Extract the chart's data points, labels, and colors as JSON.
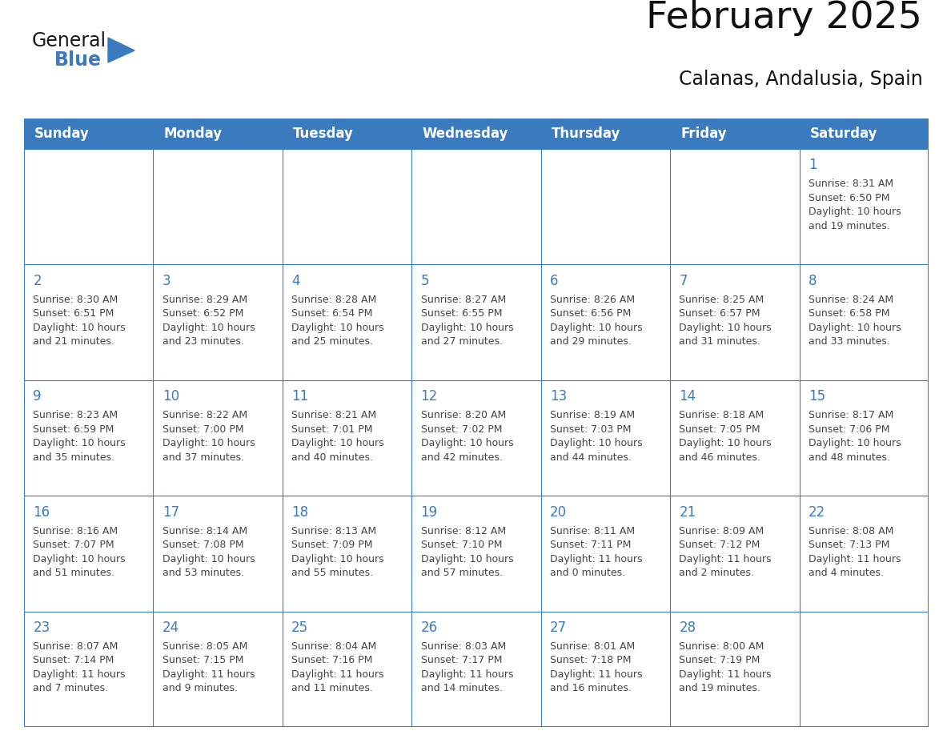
{
  "title": "February 2025",
  "subtitle": "Calanas, Andalusia, Spain",
  "header_bg": "#3a7abf",
  "header_text_color": "#ffffff",
  "grid_line_color": "#3a7abf",
  "day_number_color": "#3a7abf",
  "cell_text_color": "#444444",
  "days_of_week": [
    "Sunday",
    "Monday",
    "Tuesday",
    "Wednesday",
    "Thursday",
    "Friday",
    "Saturday"
  ],
  "weeks": [
    [
      {
        "day": null,
        "info": ""
      },
      {
        "day": null,
        "info": ""
      },
      {
        "day": null,
        "info": ""
      },
      {
        "day": null,
        "info": ""
      },
      {
        "day": null,
        "info": ""
      },
      {
        "day": null,
        "info": ""
      },
      {
        "day": 1,
        "info": "Sunrise: 8:31 AM\nSunset: 6:50 PM\nDaylight: 10 hours\nand 19 minutes."
      }
    ],
    [
      {
        "day": 2,
        "info": "Sunrise: 8:30 AM\nSunset: 6:51 PM\nDaylight: 10 hours\nand 21 minutes."
      },
      {
        "day": 3,
        "info": "Sunrise: 8:29 AM\nSunset: 6:52 PM\nDaylight: 10 hours\nand 23 minutes."
      },
      {
        "day": 4,
        "info": "Sunrise: 8:28 AM\nSunset: 6:54 PM\nDaylight: 10 hours\nand 25 minutes."
      },
      {
        "day": 5,
        "info": "Sunrise: 8:27 AM\nSunset: 6:55 PM\nDaylight: 10 hours\nand 27 minutes."
      },
      {
        "day": 6,
        "info": "Sunrise: 8:26 AM\nSunset: 6:56 PM\nDaylight: 10 hours\nand 29 minutes."
      },
      {
        "day": 7,
        "info": "Sunrise: 8:25 AM\nSunset: 6:57 PM\nDaylight: 10 hours\nand 31 minutes."
      },
      {
        "day": 8,
        "info": "Sunrise: 8:24 AM\nSunset: 6:58 PM\nDaylight: 10 hours\nand 33 minutes."
      }
    ],
    [
      {
        "day": 9,
        "info": "Sunrise: 8:23 AM\nSunset: 6:59 PM\nDaylight: 10 hours\nand 35 minutes."
      },
      {
        "day": 10,
        "info": "Sunrise: 8:22 AM\nSunset: 7:00 PM\nDaylight: 10 hours\nand 37 minutes."
      },
      {
        "day": 11,
        "info": "Sunrise: 8:21 AM\nSunset: 7:01 PM\nDaylight: 10 hours\nand 40 minutes."
      },
      {
        "day": 12,
        "info": "Sunrise: 8:20 AM\nSunset: 7:02 PM\nDaylight: 10 hours\nand 42 minutes."
      },
      {
        "day": 13,
        "info": "Sunrise: 8:19 AM\nSunset: 7:03 PM\nDaylight: 10 hours\nand 44 minutes."
      },
      {
        "day": 14,
        "info": "Sunrise: 8:18 AM\nSunset: 7:05 PM\nDaylight: 10 hours\nand 46 minutes."
      },
      {
        "day": 15,
        "info": "Sunrise: 8:17 AM\nSunset: 7:06 PM\nDaylight: 10 hours\nand 48 minutes."
      }
    ],
    [
      {
        "day": 16,
        "info": "Sunrise: 8:16 AM\nSunset: 7:07 PM\nDaylight: 10 hours\nand 51 minutes."
      },
      {
        "day": 17,
        "info": "Sunrise: 8:14 AM\nSunset: 7:08 PM\nDaylight: 10 hours\nand 53 minutes."
      },
      {
        "day": 18,
        "info": "Sunrise: 8:13 AM\nSunset: 7:09 PM\nDaylight: 10 hours\nand 55 minutes."
      },
      {
        "day": 19,
        "info": "Sunrise: 8:12 AM\nSunset: 7:10 PM\nDaylight: 10 hours\nand 57 minutes."
      },
      {
        "day": 20,
        "info": "Sunrise: 8:11 AM\nSunset: 7:11 PM\nDaylight: 11 hours\nand 0 minutes."
      },
      {
        "day": 21,
        "info": "Sunrise: 8:09 AM\nSunset: 7:12 PM\nDaylight: 11 hours\nand 2 minutes."
      },
      {
        "day": 22,
        "info": "Sunrise: 8:08 AM\nSunset: 7:13 PM\nDaylight: 11 hours\nand 4 minutes."
      }
    ],
    [
      {
        "day": 23,
        "info": "Sunrise: 8:07 AM\nSunset: 7:14 PM\nDaylight: 11 hours\nand 7 minutes."
      },
      {
        "day": 24,
        "info": "Sunrise: 8:05 AM\nSunset: 7:15 PM\nDaylight: 11 hours\nand 9 minutes."
      },
      {
        "day": 25,
        "info": "Sunrise: 8:04 AM\nSunset: 7:16 PM\nDaylight: 11 hours\nand 11 minutes."
      },
      {
        "day": 26,
        "info": "Sunrise: 8:03 AM\nSunset: 7:17 PM\nDaylight: 11 hours\nand 14 minutes."
      },
      {
        "day": 27,
        "info": "Sunrise: 8:01 AM\nSunset: 7:18 PM\nDaylight: 11 hours\nand 16 minutes."
      },
      {
        "day": 28,
        "info": "Sunrise: 8:00 AM\nSunset: 7:19 PM\nDaylight: 11 hours\nand 19 minutes."
      },
      {
        "day": null,
        "info": ""
      }
    ]
  ],
  "logo_general_color": "#1a1a1a",
  "logo_blue_color": "#3a7abf",
  "title_fontsize": 34,
  "subtitle_fontsize": 17,
  "header_fontsize": 12,
  "day_num_fontsize": 12,
  "cell_text_fontsize": 9.0,
  "fig_width": 11.88,
  "fig_height": 9.18,
  "fig_dpi": 100
}
